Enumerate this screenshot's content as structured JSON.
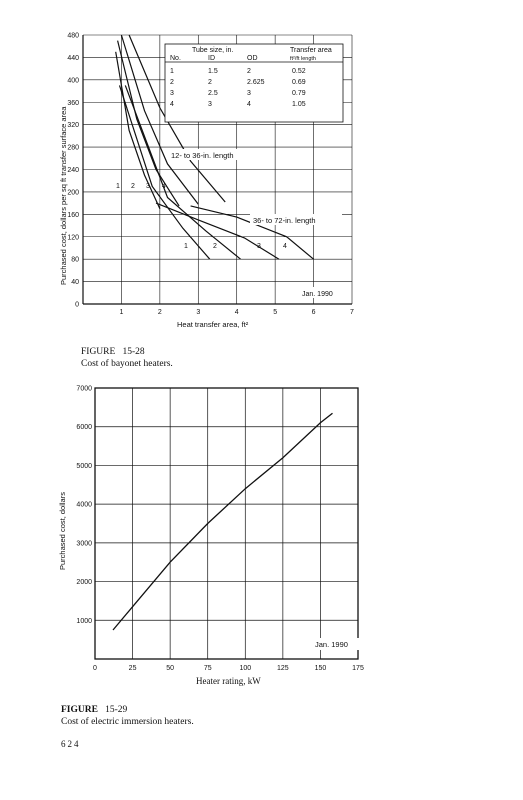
{
  "figure1": {
    "caption_label": "FIGURE",
    "caption_number": "15-28",
    "caption_text": "Cost of bayonet heaters."
  },
  "figure2": {
    "caption_label": "FIGURE",
    "caption_number": "15-29",
    "caption_text": "Cost of electric immersion heaters."
  },
  "page_number": "624",
  "chart_data": [
    {
      "type": "line",
      "xlabel": "Heat transfer area, ft²",
      "ylabel": "Purchased cost, dollars per sq ft transfer surface area",
      "xlim": [
        0,
        7
      ],
      "ylim": [
        0,
        480
      ],
      "x_ticks": [
        "1",
        "2",
        "3",
        "4",
        "5",
        "6",
        "7"
      ],
      "y_ticks": [
        "0",
        "40",
        "80",
        "120",
        "160",
        "200",
        "240",
        "280",
        "320",
        "360",
        "400",
        "440",
        "480"
      ],
      "grid": true,
      "annotations": {
        "short_length": "12- to 36-in. length",
        "long_length": "36- to 72-in. length",
        "date": "Jan. 1990"
      },
      "curve_labels_short": [
        "1",
        "2",
        "3",
        "4"
      ],
      "curve_labels_long": [
        "1",
        "2",
        "3",
        "4"
      ],
      "table": {
        "headers": [
          "No.",
          "ID",
          "OD",
          "Transfer area"
        ],
        "group_header": "Tube size, in.",
        "unit": "ft²/ft length",
        "rows": [
          [
            "1",
            "1.5",
            "2",
            "0.52"
          ],
          [
            "2",
            "2",
            "2.625",
            "0.69"
          ],
          [
            "3",
            "2.5",
            "3",
            "0.79"
          ],
          [
            "4",
            "3",
            "4",
            "1.05"
          ]
        ]
      },
      "series": [
        {
          "name": "1",
          "group": "12- to 36-in. length",
          "x": [
            0.85,
            1.2,
            1.6,
            2.0
          ],
          "y": [
            450,
            310,
            230,
            170
          ]
        },
        {
          "name": "2",
          "group": "12- to 36-in. length",
          "x": [
            0.9,
            1.4,
            1.9,
            2.5
          ],
          "y": [
            470,
            330,
            240,
            175
          ]
        },
        {
          "name": "3",
          "group": "12- to 36-in. length",
          "x": [
            1.0,
            1.6,
            2.2,
            3.0
          ],
          "y": [
            480,
            345,
            250,
            178
          ]
        },
        {
          "name": "4",
          "group": "12- to 36-in. length",
          "x": [
            1.2,
            2.0,
            2.8,
            3.7
          ],
          "y": [
            480,
            350,
            255,
            182
          ]
        },
        {
          "name": "1",
          "group": "36- to 72-in. length",
          "x": [
            0.95,
            1.8,
            2.6,
            3.3
          ],
          "y": [
            390,
            210,
            135,
            80
          ]
        },
        {
          "name": "2",
          "group": "36- to 72-in. length",
          "x": [
            1.1,
            2.2,
            3.2,
            4.1
          ],
          "y": [
            390,
            190,
            130,
            80
          ]
        },
        {
          "name": "3",
          "group": "36- to 72-in. length",
          "x": [
            1.9,
            3.0,
            4.2,
            5.1
          ],
          "y": [
            180,
            150,
            118,
            80
          ]
        },
        {
          "name": "4",
          "group": "36- to 72-in. length",
          "x": [
            2.8,
            4.0,
            5.3,
            6.0
          ],
          "y": [
            175,
            155,
            120,
            80
          ]
        }
      ]
    },
    {
      "type": "line",
      "xlabel": "Heater rating, kW",
      "ylabel": "Purchased cost, dollars",
      "xlim": [
        0,
        175
      ],
      "ylim": [
        0,
        7000
      ],
      "x_ticks": [
        "0",
        "25",
        "50",
        "75",
        "100",
        "125",
        "150",
        "175"
      ],
      "y_ticks": [
        "1000",
        "2000",
        "3000",
        "4000",
        "5000",
        "6000",
        "7000"
      ],
      "grid": true,
      "annotations": {
        "date": "Jan. 1990"
      },
      "series": [
        {
          "x": [
            12,
            25,
            50,
            75,
            100,
            125,
            150,
            158
          ],
          "y": [
            750,
            1350,
            2500,
            3500,
            4400,
            5200,
            6100,
            6350
          ]
        }
      ]
    }
  ]
}
